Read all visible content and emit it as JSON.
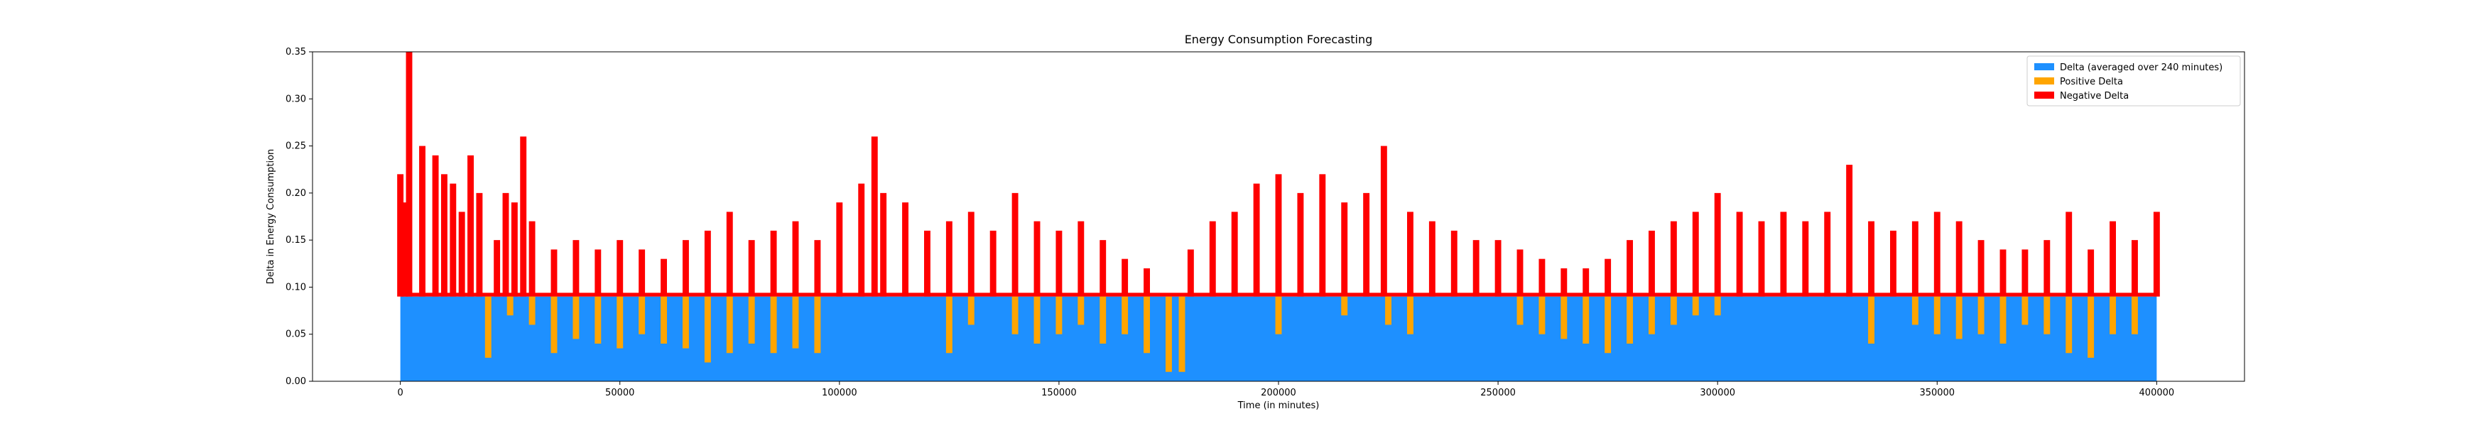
{
  "chart_data": {
    "type": "bar",
    "title": "Energy Consumption Forecasting",
    "xlabel": "Time (in minutes)",
    "ylabel": "Delta in Energy Consumption",
    "xlim": [
      -20000,
      420000
    ],
    "ylim": [
      0.0,
      0.35
    ],
    "xticks": [
      0,
      50000,
      100000,
      150000,
      200000,
      250000,
      300000,
      350000,
      400000
    ],
    "xtick_labels": [
      "0",
      "50000",
      "100000",
      "150000",
      "200000",
      "250000",
      "300000",
      "350000",
      "400000"
    ],
    "yticks": [
      0.0,
      0.05,
      0.1,
      0.15,
      0.2,
      0.25,
      0.3,
      0.35
    ],
    "ytick_labels": [
      "0.00",
      "0.05",
      "0.10",
      "0.15",
      "0.20",
      "0.25",
      "0.30",
      "0.35"
    ],
    "grid": false,
    "legend_position": "top-right",
    "baseline": 0.09,
    "bin_width_minutes": 240,
    "colors": {
      "delta": "#1e90ff",
      "positive": "#ffa500",
      "negative": "#ff0000"
    },
    "series": [
      {
        "name": "Delta (averaged over 240 minutes)",
        "color": "#1e90ff",
        "values": [
          0.09
        ]
      },
      {
        "name": "Positive Delta",
        "color": "#ffa500",
        "x": [
          20000,
          25000,
          30000,
          35000,
          40000,
          45000,
          50000,
          55000,
          60000,
          65000,
          70000,
          75000,
          80000,
          85000,
          90000,
          95000,
          125000,
          130000,
          140000,
          145000,
          150000,
          155000,
          160000,
          165000,
          170000,
          175000,
          178000,
          200000,
          215000,
          225000,
          230000,
          255000,
          260000,
          265000,
          270000,
          275000,
          280000,
          285000,
          290000,
          295000,
          300000,
          335000,
          345000,
          350000,
          355000,
          360000,
          365000,
          370000,
          375000,
          380000,
          385000,
          390000,
          395000
        ],
        "values": [
          0.025,
          0.07,
          0.06,
          0.03,
          0.045,
          0.04,
          0.035,
          0.05,
          0.04,
          0.035,
          0.02,
          0.03,
          0.04,
          0.03,
          0.035,
          0.03,
          0.03,
          0.06,
          0.05,
          0.04,
          0.05,
          0.06,
          0.04,
          0.05,
          0.03,
          0.01,
          0.01,
          0.05,
          0.07,
          0.06,
          0.05,
          0.06,
          0.05,
          0.045,
          0.04,
          0.03,
          0.04,
          0.05,
          0.06,
          0.07,
          0.07,
          0.04,
          0.06,
          0.05,
          0.045,
          0.05,
          0.04,
          0.06,
          0.05,
          0.03,
          0.025,
          0.05,
          0.05
        ]
      },
      {
        "name": "Negative Delta",
        "color": "#ff0000",
        "x": [
          0,
          1000,
          2000,
          5000,
          8000,
          10000,
          12000,
          14000,
          16000,
          18000,
          22000,
          24000,
          26000,
          28000,
          30000,
          35000,
          40000,
          45000,
          50000,
          55000,
          60000,
          65000,
          70000,
          75000,
          80000,
          85000,
          90000,
          95000,
          100000,
          105000,
          108000,
          110000,
          115000,
          120000,
          125000,
          130000,
          135000,
          140000,
          145000,
          150000,
          155000,
          160000,
          165000,
          170000,
          180000,
          185000,
          190000,
          195000,
          200000,
          205000,
          210000,
          215000,
          220000,
          224000,
          230000,
          235000,
          240000,
          245000,
          250000,
          255000,
          260000,
          265000,
          270000,
          275000,
          280000,
          285000,
          290000,
          295000,
          300000,
          305000,
          310000,
          315000,
          320000,
          325000,
          330000,
          335000,
          340000,
          345000,
          350000,
          355000,
          360000,
          365000,
          370000,
          375000,
          380000,
          385000,
          390000,
          395000,
          400000
        ],
        "values": [
          0.22,
          0.19,
          0.35,
          0.25,
          0.24,
          0.22,
          0.21,
          0.18,
          0.24,
          0.2,
          0.15,
          0.2,
          0.19,
          0.26,
          0.17,
          0.14,
          0.15,
          0.14,
          0.15,
          0.14,
          0.13,
          0.15,
          0.16,
          0.18,
          0.15,
          0.16,
          0.17,
          0.15,
          0.19,
          0.21,
          0.26,
          0.2,
          0.19,
          0.16,
          0.17,
          0.18,
          0.16,
          0.2,
          0.17,
          0.16,
          0.17,
          0.15,
          0.13,
          0.12,
          0.14,
          0.17,
          0.18,
          0.21,
          0.22,
          0.2,
          0.22,
          0.19,
          0.2,
          0.25,
          0.18,
          0.17,
          0.16,
          0.15,
          0.15,
          0.14,
          0.13,
          0.12,
          0.12,
          0.13,
          0.15,
          0.16,
          0.17,
          0.18,
          0.2,
          0.18,
          0.17,
          0.18,
          0.17,
          0.18,
          0.23,
          0.17,
          0.16,
          0.17,
          0.18,
          0.17,
          0.15,
          0.14,
          0.14,
          0.15,
          0.18,
          0.14,
          0.17,
          0.15,
          0.18
        ]
      }
    ]
  }
}
